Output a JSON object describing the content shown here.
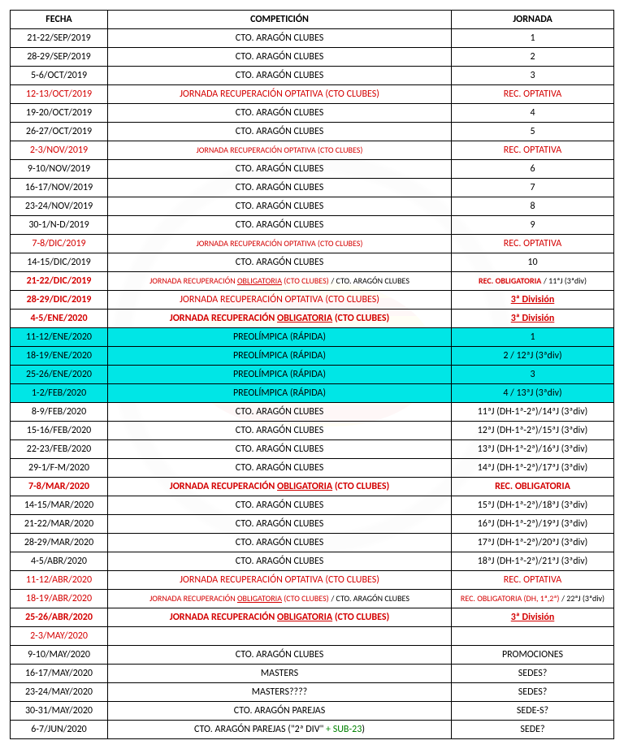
{
  "headers": {
    "fecha": "FECHA",
    "competicion": "COMPETICIÓN",
    "jornada": "JORNADA"
  },
  "rows": [
    {
      "fecha": "21-22/SEP/2019",
      "comp": "CTO. ARAGÓN CLUBES",
      "jorn": "1"
    },
    {
      "fecha": "28-29/SEP/2019",
      "comp": "CTO. ARAGÓN CLUBES",
      "jorn": "2"
    },
    {
      "fecha": "5-6/OCT/2019",
      "comp": "CTO. ARAGÓN CLUBES",
      "jorn": "3"
    },
    {
      "fecha": "12-13/OCT/2019",
      "comp": "JORNADA RECUPERACIÓN OPTATIVA (CTO CLUBES)",
      "jorn": "REC. OPTATIVA",
      "style": "red"
    },
    {
      "fecha": "19-20/OCT/2019",
      "comp": "CTO. ARAGÓN CLUBES",
      "jorn": "4"
    },
    {
      "fecha": "26-27/OCT/2019",
      "comp": "CTO. ARAGÓN CLUBES",
      "jorn": "5"
    },
    {
      "fecha": "2-3/NOV/2019",
      "comp": "JORNADA RECUPERACIÓN OPTATIVA (CTO CLUBES)",
      "jorn": "REC. OPTATIVA",
      "style": "red",
      "comp_small": true
    },
    {
      "fecha": "9-10/NOV/2019",
      "comp": "CTO. ARAGÓN CLUBES",
      "jorn": "6"
    },
    {
      "fecha": "16-17/NOV/2019",
      "comp": "CTO. ARAGÓN CLUBES",
      "jorn": "7"
    },
    {
      "fecha": "23-24/NOV/2019",
      "comp": "CTO. ARAGÓN CLUBES",
      "jorn": "8"
    },
    {
      "fecha": "30-1/N-D/2019",
      "comp": "CTO. ARAGÓN CLUBES",
      "jorn": "9"
    },
    {
      "fecha": "7-8/DIC/2019",
      "comp": "JORNADA RECUPERACIÓN OPTATIVA (CTO CLUBES)",
      "jorn": "REC. OPTATIVA",
      "style": "red",
      "comp_small": true
    },
    {
      "fecha": "14-15/DIC/2019",
      "comp": "CTO. ARAGÓN CLUBES",
      "jorn": "10"
    },
    {
      "fecha": "21-22/DIC/2019",
      "comp_html": "<span class='red small'>JORNADA RECUPERACIÓN <span class='u'>OBLIGATORIA</span> (CTO CLUBES)</span> <span class='small'>/ CTO. ARAGÓN CLUBES</span>",
      "jorn_html": "<span class='redbold small'>REC. OBLIGATORIA</span> <span class='small'>/ 11ªJ (3ªdiv)</span>",
      "style": "redbold_fecha"
    },
    {
      "fecha": "28-29/DIC/2019",
      "comp": "JORNADA RECUPERACIÓN OPTATIVA (CTO CLUBES)",
      "jorn_html": "<span class='redbold'><span class='u'>3ª División</span></span>",
      "style": "redbold_fecha",
      "comp_red": true
    },
    {
      "fecha": "4-5/ENE/2020",
      "comp_html": "<span class='redbold'>JORNADA RECUPERACIÓN <span class='u'>OBLIGATORIA</span> (CTO CLUBES)</span>",
      "jorn_html": "<span class='redbold'><span class='u'>3ª División</span></span>",
      "style": "redbold_fecha"
    },
    {
      "fecha": "11-12/ENE/2020",
      "comp": "PREOLÍMPICA (RÁPIDA)",
      "jorn": "1",
      "bg": "cyan"
    },
    {
      "fecha": "18-19/ENE/2020",
      "comp": "PREOLÍMPICA (RÁPIDA)",
      "jorn": "2 / 12ªJ (3ªdiv)",
      "bg": "cyan"
    },
    {
      "fecha": "25-26/ENE/2020",
      "comp": "PREOLÍMPICA (RÁPIDA)",
      "jorn": "3",
      "bg": "cyan"
    },
    {
      "fecha": "1-2/FEB/2020",
      "comp": "PREOLÍMPICA (RÁPIDA)",
      "jorn": "4 / 13ªJ (3ªdiv)",
      "bg": "cyan"
    },
    {
      "fecha": "8-9/FEB/2020",
      "comp": "CTO. ARAGÓN CLUBES",
      "jorn": "11ªJ (DH-1ª-2ª)/14ªJ (3ªdiv)"
    },
    {
      "fecha": "15-16/FEB/2020",
      "comp": "CTO. ARAGÓN CLUBES",
      "jorn": "12ªJ (DH-1ª-2ª)/15ªJ (3ªdiv)"
    },
    {
      "fecha": "22-23/FEB/2020",
      "comp": "CTO. ARAGÓN CLUBES",
      "jorn": "13ªJ (DH-1ª-2ª)/16ªJ (3ªdiv)"
    },
    {
      "fecha": "29-1/F-M/2020",
      "comp": "CTO. ARAGÓN CLUBES",
      "jorn": "14ªJ (DH-1ª-2ª)/17ªJ (3ªdiv)"
    },
    {
      "fecha": "7-8/MAR/2020",
      "comp_html": "<span class='redbold'>JORNADA RECUPERACIÓN <span class='u'>OBLIGATORIA</span> (CTO CLUBES)</span>",
      "jorn": "REC. OBLIGATORIA",
      "style": "redbold_all"
    },
    {
      "fecha": "14-15/MAR/2020",
      "comp": "CTO. ARAGÓN CLUBES",
      "jorn": "15ªJ (DH-1ª-2ª)/18ªJ (3ªdiv)"
    },
    {
      "fecha": "21-22/MAR/2020",
      "comp": "CTO. ARAGÓN CLUBES",
      "jorn": "16ªJ (DH-1ª-2ª)/19ªJ (3ªdiv)"
    },
    {
      "fecha": "28-29/MAR/2020",
      "comp": "CTO. ARAGÓN CLUBES",
      "jorn": "17ªJ (DH-1ª-2ª)/20ªJ (3ªdiv)"
    },
    {
      "fecha": "4-5/ABR/2020",
      "comp": "CTO. ARAGÓN CLUBES",
      "jorn": "18ªJ (DH-1ª-2ª)/21ªJ (3ªdiv)"
    },
    {
      "fecha": "11-12/ABR/2020",
      "comp": "JORNADA RECUPERACIÓN OPTATIVA (CTO CLUBES)",
      "jorn": "REC. OPTATIVA",
      "style": "red"
    },
    {
      "fecha": "18-19/ABR/2020",
      "comp_html": "<span class='red small'>JORNADA RECUPERACIÓN <span class='u'>OBLIGATORIA</span> (CTO CLUBES)</span> <span class='small'>/ CTO. ARAGÓN CLUBES</span>",
      "jorn_html": "<span class='red small'>REC. OBLIGATORIA (DH, 1ª,2ª)</span> <span class='small'>/ 22ªJ (3ªdiv)</span>",
      "style": "red_fecha"
    },
    {
      "fecha": "25-26/ABR/2020",
      "comp_html": "<span class='redbold'>JORNADA RECUPERACIÓN <span class='u'>OBLIGATORIA</span> (CTO CLUBES)</span>",
      "jorn_html": "<span class='redbold'><span class='u'>3ª División</span></span>",
      "style": "redbold_fecha"
    },
    {
      "fecha": "2-3/MAY/2020",
      "comp": "",
      "jorn": "",
      "style": "red_fecha"
    },
    {
      "fecha": "9-10/MAY/2020",
      "comp": "CTO. ARAGÓN CLUBES",
      "jorn": "PROMOCIONES"
    },
    {
      "fecha": "16-17/MAY/2020",
      "comp": "MASTERS",
      "jorn": "SEDES?"
    },
    {
      "fecha": "23-24/MAY/2020",
      "comp": "MASTERS????",
      "jorn": "SEDES?"
    },
    {
      "fecha": "30-31/MAY/2020",
      "comp": "CTO. ARAGÓN PAREJAS",
      "jorn": "SEDE-S?"
    },
    {
      "fecha": "6-7/JUN/2020",
      "comp_html": "CTO. ARAGÓN PAREJAS (\"2ª DIV\" <span class='green'>+ SUB-23</span>)",
      "jorn": "SEDE?"
    }
  ]
}
